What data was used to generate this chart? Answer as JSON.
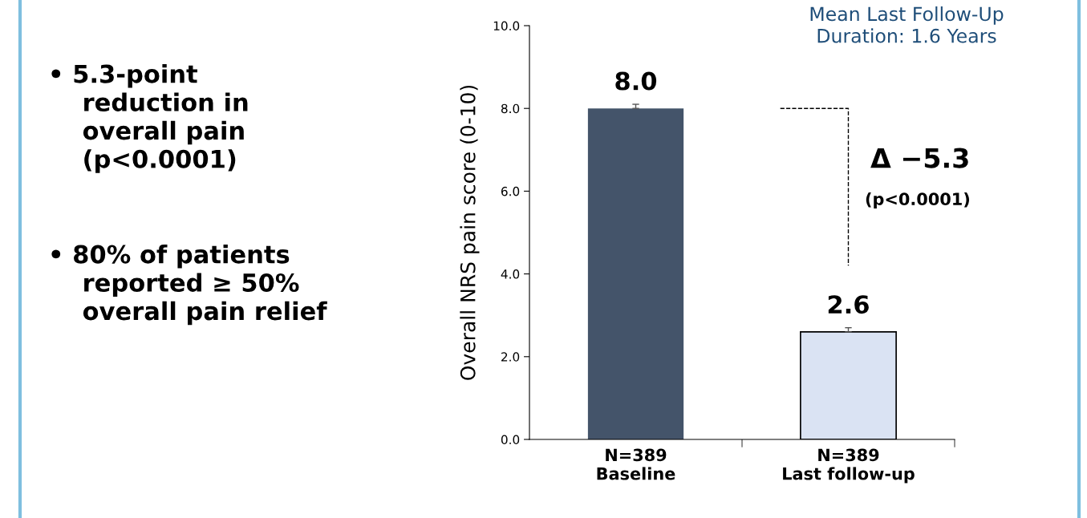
{
  "chart_data": {
    "type": "bar",
    "ylabel": "Overall NRS pain score (0-10)",
    "categories": [
      "N=389\nBaseline",
      "N=389\nLast follow-up"
    ],
    "values": [
      8.0,
      2.6
    ],
    "colors": [
      "#44546a",
      "#dae3f3"
    ],
    "errors": [
      0.1,
      0.1
    ],
    "value_labels": [
      "8.0",
      "2.6"
    ],
    "ylim": [
      0,
      10
    ],
    "yticks": [
      {
        "value": 0,
        "label": "0.0"
      },
      {
        "value": 2,
        "label": "2.0"
      },
      {
        "value": 4,
        "label": "4.0"
      },
      {
        "value": 6,
        "label": "6.0"
      },
      {
        "value": 8,
        "label": "8.0"
      },
      {
        "value": 10,
        "label": "10.0"
      }
    ],
    "grid": false,
    "annotations": [
      "Δ −5.3",
      "(p<0.0001)",
      "Mean Last Follow-Up\nDuration: 1.6 Years",
      "• 5.3-point\nreduction in\noverall pain\n(p<0.0001)",
      "• 80% of patients\nreported ≥ 50%\noverall pain relief"
    ]
  }
}
